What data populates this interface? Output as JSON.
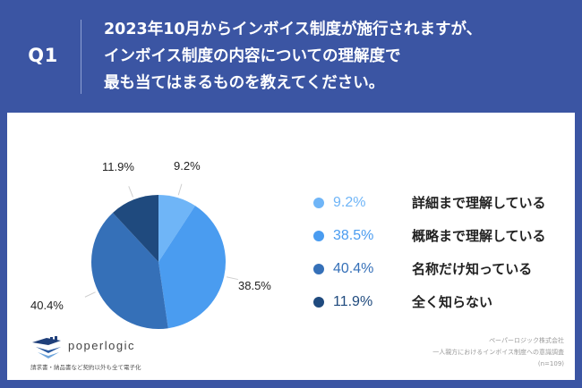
{
  "header": {
    "question_label": "Q1",
    "question_lines": [
      "2023年10月からインボイス制度が施行されますが、",
      "インボイス制度の内容についての理解度で",
      "最も当てはまるものを教えてください。"
    ],
    "background_color": "#3b55a3"
  },
  "chart_data": {
    "type": "pie",
    "title": "2023年10月からインボイス制度が施行されますが、インボイス制度の内容についての理解度で最も当てはまるものを教えてください。",
    "categories": [
      "詳細まで理解している",
      "概略まで理解している",
      "名称だけ知っている",
      "全く知らない"
    ],
    "values": [
      9.2,
      38.5,
      40.4,
      11.9
    ],
    "value_labels": [
      "9.2%",
      "38.5%",
      "40.4%",
      "11.9%"
    ],
    "colors": [
      "#6fb5f7",
      "#4a9cf0",
      "#3570b8",
      "#1f4a7e"
    ],
    "start_angle": "top",
    "direction": "clockwise",
    "legend_position": "right",
    "sample_size": "n=109"
  },
  "legend": {
    "items": [
      {
        "pct": "9.2%",
        "label": "詳細まで理解している",
        "color": "#6fb5f7"
      },
      {
        "pct": "38.5%",
        "label": "概略まで理解している",
        "color": "#4a9cf0"
      },
      {
        "pct": "40.4%",
        "label": "名称だけ知っている",
        "color": "#3570b8"
      },
      {
        "pct": "11.9%",
        "label": "全く知らない",
        "color": "#1f4a7e"
      }
    ]
  },
  "logo": {
    "name": "poperlogic",
    "tagline": "請求書・納品書など契約以外も全て電子化"
  },
  "source": {
    "company": "ペーパーロジック株式会社",
    "survey": "一人親方におけるインボイス制度への意識調査",
    "sample": "(n=109)"
  }
}
